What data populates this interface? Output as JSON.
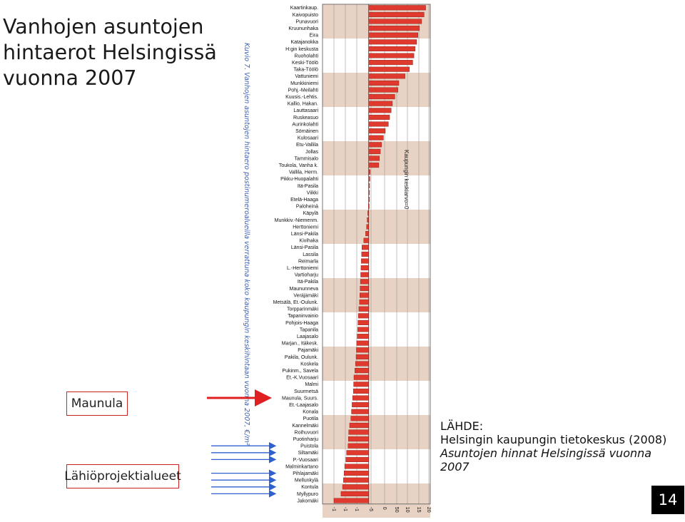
{
  "slide": {
    "title": "Vanhojen asuntojen hintaerot Helsingissä vuonna 2007",
    "maunula_label": "Maunula",
    "lahio_label": "Lähiöprojektialueet",
    "page_number": "14"
  },
  "source": {
    "heading": "LÄHDE:",
    "line1": "Helsingin kaupungin tietokeskus (2008)",
    "line2": "Asuntojen hinnat Helsingissä vuonna 2007"
  },
  "colors": {
    "bar": "#e0392e",
    "bar_stroke": "#7a1a12",
    "band": "#e8d2c4",
    "arrow_red": "#e02020",
    "arrow_blue": "#3060d0",
    "caption": "#3a5fb8"
  },
  "chart_data": {
    "type": "bar",
    "orientation": "horizontal",
    "caption": "Kuvio 7. Vanhojen asuntojen hintaero postinumeroalueilla verrattuna koko kaupungin keskihintaan vuonna 2007, €/m²",
    "reference_label": "Kaupungin keskiarvo=0",
    "xlim": [
      -1500,
      2000
    ],
    "x_ticks": [
      "-1",
      "-1",
      "-1",
      "-5",
      "0",
      "50",
      "10",
      "15",
      "20"
    ],
    "highlight": "Maunula",
    "lahio_areas": [
      "Puistola",
      "Siltamäki",
      "P.-Vuosaari",
      "Pihlajamäki",
      "Mellunkylä",
      "Kontula",
      "Myllypuro"
    ],
    "categories": [
      "Kaartinkaup.",
      "Kaivopuisto",
      "Punavuori",
      "Kruununhaka",
      "Eira",
      "Katajanokka",
      "H:gin keskusta",
      "Ruoholahti",
      "Keski-Töölö",
      "Taka-Töölö",
      "Vattuniemi",
      "Munkkiniemi",
      "Pohj.-Meilahti",
      "Kuusis.-Lehtis.",
      "Kallio, Hakan.",
      "Lauttasaari",
      "Ruskeasuo",
      "Aurinkolahti",
      "Sörnäinen",
      "Kulosaari",
      "Etu-Vallila",
      "Jollas",
      "Tammisalo",
      "Toukola, Vanha k.",
      "Vallila, Herm.",
      "Pikku-Huopalahti",
      "Itä-Pasila",
      "Viikki",
      "Etelä-Haaga",
      "Paloheinä",
      "Käpylä",
      "Munkkiv.-Niemenm.",
      "Herttoniemi",
      "Länsi-Pakila",
      "Kivihaka",
      "Länsi-Pasila",
      "Lassila",
      "Reimarla",
      "L.-Herttoniemi",
      "Vartioharju",
      "Itä-Pakila",
      "Maununneva",
      "Veräjämäki",
      "Metsälä, Et.-Oulunk.",
      "Torpparinmäki",
      "Tapaninvainio",
      "Pohjois-Haaga",
      "Tapanila",
      "Laajasalo",
      "Marjan., Itäkesk.",
      "Pajamäki",
      "Pakila, Oulunk.",
      "Koskela",
      "Pukinm., Savela",
      "Et.-K.Vuosaari",
      "Malmi",
      "Suurmetsä",
      "Maunula, Suurs.",
      "Et.-Laajasalo",
      "Konala",
      "Puotila",
      "Kannelmäki",
      "Roihuvuori",
      "Puotinharju",
      "Puistola",
      "Siltamäki",
      "P.-Vuosaari",
      "Malminkartano",
      "Pihlajamäki",
      "Mellunkylä",
      "Kontula",
      "Myllypuro",
      "Jakomäki"
    ],
    "values": [
      1850,
      1800,
      1720,
      1650,
      1600,
      1560,
      1510,
      1470,
      1430,
      1320,
      1180,
      980,
      950,
      850,
      770,
      730,
      680,
      640,
      540,
      480,
      420,
      380,
      350,
      330,
      50,
      40,
      30,
      20,
      0,
      -10,
      -30,
      -50,
      -70,
      -100,
      -160,
      -220,
      -230,
      -240,
      -250,
      -260,
      -270,
      -280,
      -290,
      -300,
      -320,
      -340,
      -350,
      -360,
      -370,
      -390,
      -400,
      -410,
      -430,
      -450,
      -480,
      -490,
      -500,
      -520,
      -540,
      -560,
      -580,
      -620,
      -650,
      -660,
      -670,
      -720,
      -740,
      -780,
      -800,
      -820,
      -850,
      -900,
      -1130
    ]
  }
}
